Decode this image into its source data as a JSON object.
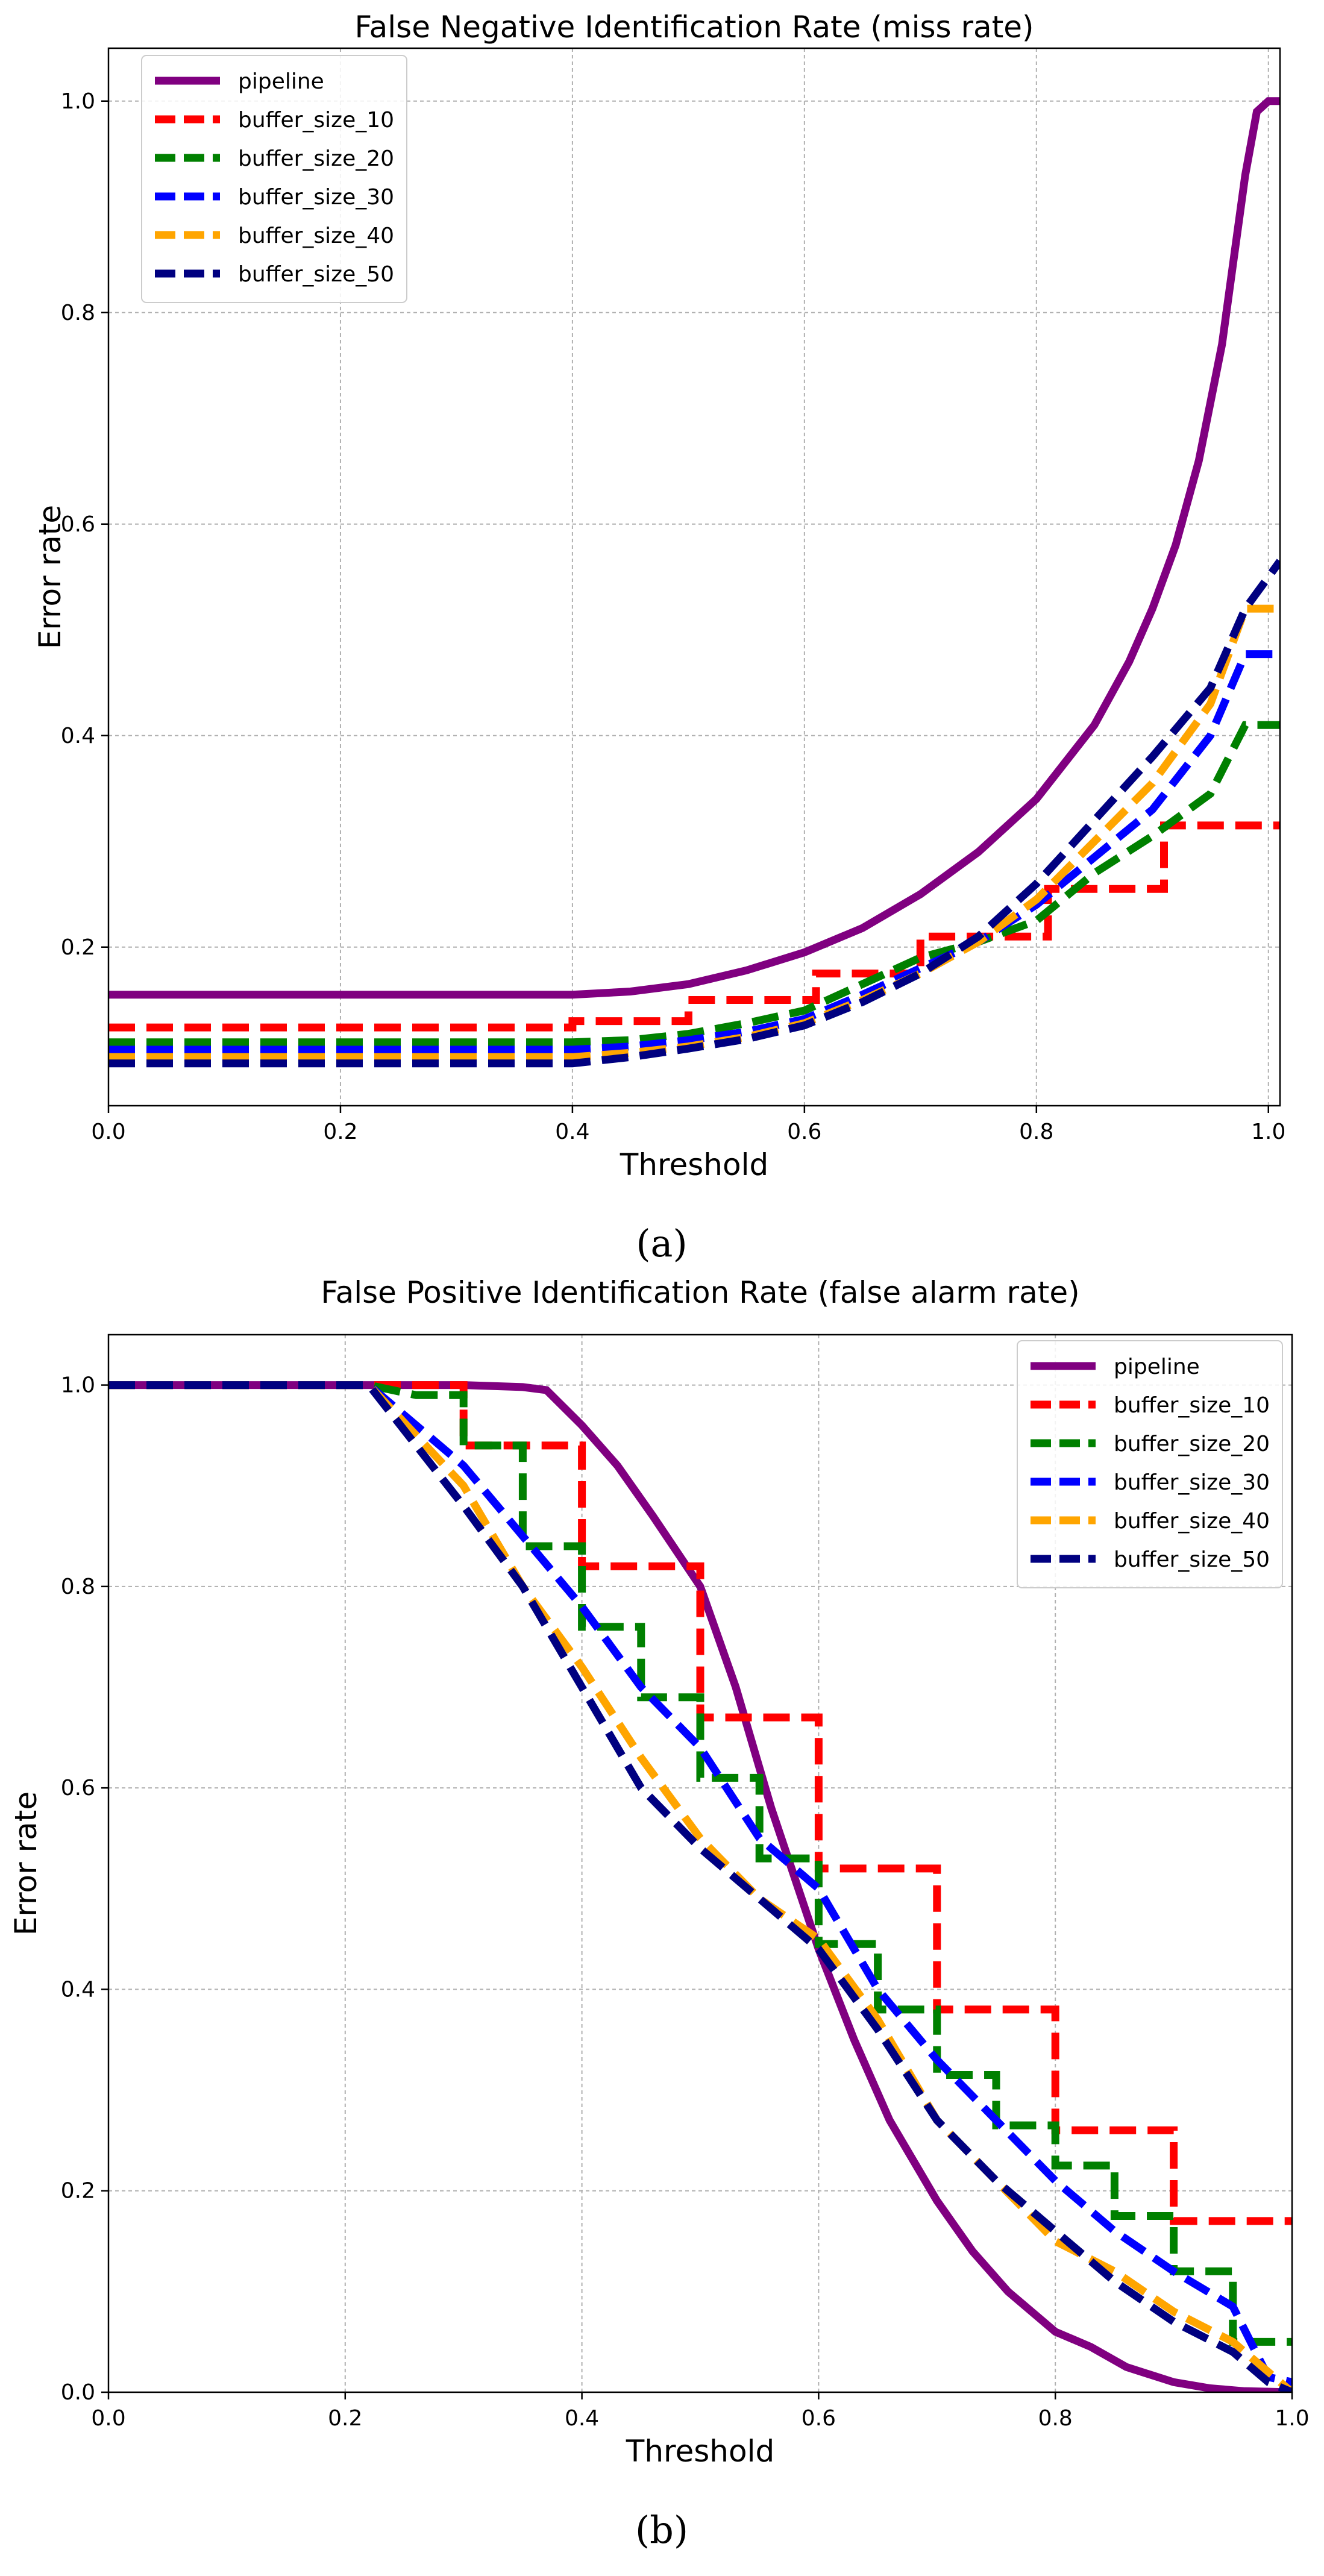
{
  "chart_data": [
    {
      "type": "line",
      "panel_label": "(a)",
      "title": "False Negative Identification Rate (miss rate)",
      "xlabel": "Threshold",
      "ylabel": "Error rate",
      "xlim": [
        0.0,
        1.01
      ],
      "ylim": [
        0.05,
        1.05
      ],
      "xticks": [
        0.0,
        0.2,
        0.4,
        0.6,
        0.8,
        1.0
      ],
      "xtick_labels": [
        "0.0",
        "0.2",
        "0.4",
        "0.6",
        "0.8",
        "1.0"
      ],
      "yticks": [
        0.2,
        0.4,
        0.6,
        0.8,
        1.0
      ],
      "ytick_labels": [
        "0.2",
        "0.4",
        "0.6",
        "0.8",
        "1.0"
      ],
      "grid": true,
      "legend_position": "top-left",
      "series": [
        {
          "name": "pipeline",
          "color": "#800080",
          "style": "solid",
          "x": [
            0.0,
            0.2,
            0.4,
            0.45,
            0.5,
            0.55,
            0.6,
            0.65,
            0.7,
            0.75,
            0.8,
            0.85,
            0.88,
            0.9,
            0.92,
            0.94,
            0.96,
            0.97,
            0.98,
            0.99,
            1.0,
            1.01
          ],
          "y": [
            0.155,
            0.155,
            0.155,
            0.158,
            0.165,
            0.178,
            0.195,
            0.218,
            0.25,
            0.29,
            0.34,
            0.41,
            0.47,
            0.52,
            0.58,
            0.66,
            0.77,
            0.85,
            0.93,
            0.99,
            1.0,
            1.0
          ]
        },
        {
          "name": "buffer_size_10",
          "color": "#ff0000",
          "style": "dashed",
          "x": [
            0.0,
            0.4,
            0.4,
            0.5,
            0.5,
            0.61,
            0.61,
            0.7,
            0.7,
            0.81,
            0.81,
            0.91,
            0.91,
            1.01
          ],
          "y": [
            0.124,
            0.124,
            0.13,
            0.13,
            0.15,
            0.15,
            0.175,
            0.175,
            0.21,
            0.21,
            0.255,
            0.255,
            0.315,
            0.315
          ]
        },
        {
          "name": "buffer_size_20",
          "color": "#008000",
          "style": "dashed",
          "x": [
            0.0,
            0.4,
            0.45,
            0.5,
            0.55,
            0.6,
            0.65,
            0.7,
            0.75,
            0.8,
            0.85,
            0.9,
            0.95,
            0.98,
            1.01
          ],
          "y": [
            0.11,
            0.11,
            0.112,
            0.118,
            0.128,
            0.14,
            0.165,
            0.19,
            0.205,
            0.225,
            0.27,
            0.305,
            0.345,
            0.41,
            0.41
          ]
        },
        {
          "name": "buffer_size_30",
          "color": "#0000ff",
          "style": "dashed",
          "x": [
            0.0,
            0.4,
            0.45,
            0.5,
            0.55,
            0.6,
            0.65,
            0.7,
            0.75,
            0.8,
            0.85,
            0.9,
            0.95,
            0.98,
            1.01
          ],
          "y": [
            0.103,
            0.103,
            0.106,
            0.112,
            0.12,
            0.132,
            0.155,
            0.18,
            0.205,
            0.24,
            0.285,
            0.33,
            0.4,
            0.477,
            0.477
          ]
        },
        {
          "name": "buffer_size_40",
          "color": "#ffa500",
          "style": "dashed",
          "x": [
            0.0,
            0.4,
            0.45,
            0.5,
            0.55,
            0.6,
            0.65,
            0.7,
            0.75,
            0.8,
            0.85,
            0.9,
            0.95,
            0.98,
            1.01
          ],
          "y": [
            0.096,
            0.096,
            0.1,
            0.106,
            0.115,
            0.128,
            0.15,
            0.175,
            0.205,
            0.245,
            0.3,
            0.355,
            0.43,
            0.52,
            0.52
          ]
        },
        {
          "name": "buffer_size_50",
          "color": "#000080",
          "style": "dashed",
          "x": [
            0.0,
            0.4,
            0.45,
            0.5,
            0.55,
            0.6,
            0.65,
            0.7,
            0.75,
            0.8,
            0.85,
            0.9,
            0.95,
            0.98,
            1.01
          ],
          "y": [
            0.09,
            0.09,
            0.096,
            0.104,
            0.113,
            0.126,
            0.148,
            0.175,
            0.21,
            0.26,
            0.32,
            0.38,
            0.445,
            0.52,
            0.565
          ]
        }
      ]
    },
    {
      "type": "line",
      "panel_label": "(b)",
      "title": "False Positive Identification Rate (false alarm rate)",
      "xlabel": "Threshold",
      "ylabel": "Error rate",
      "xlim": [
        0.0,
        1.0
      ],
      "ylim": [
        0.0,
        1.05
      ],
      "xticks": [
        0.0,
        0.2,
        0.4,
        0.6,
        0.8,
        1.0
      ],
      "xtick_labels": [
        "0.0",
        "0.2",
        "0.4",
        "0.6",
        "0.8",
        "1.0"
      ],
      "yticks": [
        0.0,
        0.2,
        0.4,
        0.6,
        0.8,
        1.0
      ],
      "ytick_labels": [
        "0.0",
        "0.2",
        "0.4",
        "0.6",
        "0.8",
        "1.0"
      ],
      "grid": true,
      "legend_position": "top-right",
      "series": [
        {
          "name": "pipeline",
          "color": "#800080",
          "style": "solid",
          "x": [
            0.0,
            0.2,
            0.3,
            0.35,
            0.37,
            0.4,
            0.43,
            0.46,
            0.5,
            0.53,
            0.56,
            0.6,
            0.63,
            0.66,
            0.7,
            0.73,
            0.76,
            0.8,
            0.83,
            0.86,
            0.9,
            0.93,
            0.96,
            1.0
          ],
          "y": [
            1.0,
            1.0,
            1.0,
            0.998,
            0.995,
            0.96,
            0.92,
            0.87,
            0.8,
            0.7,
            0.58,
            0.44,
            0.35,
            0.27,
            0.19,
            0.14,
            0.1,
            0.06,
            0.045,
            0.025,
            0.01,
            0.004,
            0.001,
            0.0
          ]
        },
        {
          "name": "buffer_size_10",
          "color": "#ff0000",
          "style": "dashed",
          "x": [
            0.0,
            0.3,
            0.3,
            0.4,
            0.4,
            0.5,
            0.5,
            0.6,
            0.6,
            0.7,
            0.7,
            0.8,
            0.8,
            0.9,
            0.9,
            1.0
          ],
          "y": [
            1.0,
            1.0,
            0.94,
            0.94,
            0.82,
            0.82,
            0.67,
            0.67,
            0.52,
            0.52,
            0.38,
            0.38,
            0.26,
            0.26,
            0.17,
            0.17
          ]
        },
        {
          "name": "buffer_size_20",
          "color": "#008000",
          "style": "dashed",
          "x": [
            0.0,
            0.22,
            0.26,
            0.3,
            0.3,
            0.35,
            0.35,
            0.4,
            0.4,
            0.45,
            0.45,
            0.5,
            0.5,
            0.55,
            0.55,
            0.6,
            0.6,
            0.65,
            0.65,
            0.7,
            0.7,
            0.75,
            0.75,
            0.8,
            0.8,
            0.85,
            0.85,
            0.9,
            0.9,
            0.95,
            0.95,
            0.98,
            0.98,
            1.0
          ],
          "y": [
            1.0,
            1.0,
            0.99,
            0.99,
            0.94,
            0.94,
            0.84,
            0.84,
            0.76,
            0.76,
            0.69,
            0.69,
            0.61,
            0.61,
            0.53,
            0.53,
            0.445,
            0.445,
            0.38,
            0.38,
            0.315,
            0.315,
            0.265,
            0.265,
            0.225,
            0.225,
            0.175,
            0.175,
            0.12,
            0.12,
            0.05,
            0.05,
            0.05,
            0.05
          ]
        },
        {
          "name": "buffer_size_30",
          "color": "#0000ff",
          "style": "dashed",
          "x": [
            0.0,
            0.22,
            0.3,
            0.35,
            0.4,
            0.45,
            0.5,
            0.55,
            0.6,
            0.65,
            0.7,
            0.75,
            0.8,
            0.85,
            0.9,
            0.95,
            0.98,
            1.0
          ],
          "y": [
            1.0,
            1.0,
            0.92,
            0.85,
            0.78,
            0.7,
            0.64,
            0.55,
            0.5,
            0.4,
            0.33,
            0.27,
            0.21,
            0.16,
            0.12,
            0.085,
            0.015,
            0.01
          ]
        },
        {
          "name": "buffer_size_40",
          "color": "#ffa500",
          "style": "dashed",
          "x": [
            0.0,
            0.22,
            0.3,
            0.35,
            0.4,
            0.45,
            0.5,
            0.55,
            0.6,
            0.65,
            0.7,
            0.75,
            0.8,
            0.85,
            0.9,
            0.95,
            0.98,
            1.0
          ],
          "y": [
            1.0,
            1.0,
            0.9,
            0.8,
            0.72,
            0.63,
            0.55,
            0.49,
            0.45,
            0.37,
            0.27,
            0.21,
            0.15,
            0.12,
            0.08,
            0.05,
            0.02,
            0.0
          ]
        },
        {
          "name": "buffer_size_50",
          "color": "#000080",
          "style": "dashed",
          "x": [
            0.0,
            0.22,
            0.3,
            0.35,
            0.4,
            0.45,
            0.5,
            0.55,
            0.6,
            0.65,
            0.7,
            0.75,
            0.8,
            0.85,
            0.9,
            0.95,
            0.98,
            1.0
          ],
          "y": [
            1.0,
            1.0,
            0.88,
            0.8,
            0.7,
            0.6,
            0.54,
            0.49,
            0.44,
            0.36,
            0.27,
            0.21,
            0.16,
            0.11,
            0.07,
            0.04,
            0.01,
            0.0
          ]
        }
      ]
    }
  ]
}
